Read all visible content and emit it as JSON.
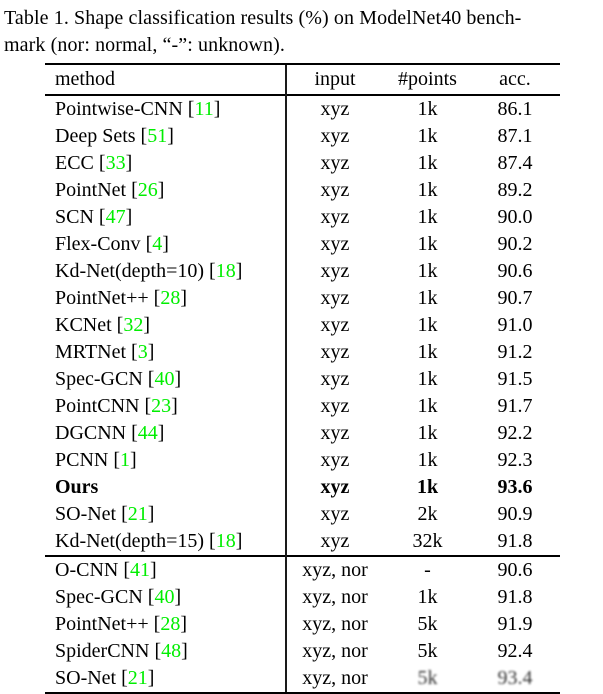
{
  "caption": {
    "line1": "Table 1. Shape classification results (%) on ModelNet40 bench-",
    "line2": "mark (nor: normal, “-”: unknown)."
  },
  "citation_format": {
    "open": "[",
    "close": "]"
  },
  "colors": {
    "citation_green": "#00ee00",
    "text": "#000000",
    "background": "#ffffff"
  },
  "table": {
    "headers": [
      "method",
      "input",
      "#points",
      "acc."
    ],
    "groups": [
      {
        "rows": [
          {
            "method": "Pointwise-CNN",
            "cite": "11",
            "input": "xyz",
            "points": "1k",
            "acc": "86.1"
          },
          {
            "method": "Deep Sets",
            "cite": "51",
            "input": "xyz",
            "points": "1k",
            "acc": "87.1"
          },
          {
            "method": "ECC",
            "cite": "33",
            "input": "xyz",
            "points": "1k",
            "acc": "87.4"
          },
          {
            "method": "PointNet",
            "cite": "26",
            "input": "xyz",
            "points": "1k",
            "acc": "89.2"
          },
          {
            "method": "SCN",
            "cite": "47",
            "input": "xyz",
            "points": "1k",
            "acc": "90.0"
          },
          {
            "method": "Flex-Conv",
            "cite": "4",
            "input": "xyz",
            "points": "1k",
            "acc": "90.2"
          },
          {
            "method": "Kd-Net(depth=10)",
            "cite": "18",
            "input": "xyz",
            "points": "1k",
            "acc": "90.6"
          },
          {
            "method": "PointNet++",
            "cite": "28",
            "input": "xyz",
            "points": "1k",
            "acc": "90.7"
          },
          {
            "method": "KCNet",
            "cite": "32",
            "input": "xyz",
            "points": "1k",
            "acc": "91.0"
          },
          {
            "method": "MRTNet",
            "cite": "3",
            "input": "xyz",
            "points": "1k",
            "acc": "91.2"
          },
          {
            "method": "Spec-GCN",
            "cite": "40",
            "input": "xyz",
            "points": "1k",
            "acc": "91.5"
          },
          {
            "method": "PointCNN",
            "cite": "23",
            "input": "xyz",
            "points": "1k",
            "acc": "91.7"
          },
          {
            "method": "DGCNN",
            "cite": "44",
            "input": "xyz",
            "points": "1k",
            "acc": "92.2"
          },
          {
            "method": "PCNN",
            "cite": "1",
            "input": "xyz",
            "points": "1k",
            "acc": "92.3"
          },
          {
            "method": "Ours",
            "bold": true,
            "input": "xyz",
            "points": "1k",
            "acc": "93.6"
          },
          {
            "method": "SO-Net",
            "cite": "21",
            "input": "xyz",
            "points": "2k",
            "acc": "90.9"
          },
          {
            "method": "Kd-Net(depth=15)",
            "cite": "18",
            "input": "xyz",
            "points": "32k",
            "acc": "91.8"
          }
        ]
      },
      {
        "rows": [
          {
            "method": "O-CNN",
            "cite": "41",
            "input": "xyz, nor",
            "points": "-",
            "acc": "90.6"
          },
          {
            "method": "Spec-GCN",
            "cite": "40",
            "input": "xyz, nor",
            "points": "1k",
            "acc": "91.8"
          },
          {
            "method": "PointNet++",
            "cite": "28",
            "input": "xyz, nor",
            "points": "5k",
            "acc": "91.9"
          },
          {
            "method": "SpiderCNN",
            "cite": "48",
            "input": "xyz, nor",
            "points": "5k",
            "acc": "92.4"
          },
          {
            "method": "SO-Net",
            "cite": "21",
            "input": "xyz, nor",
            "points": "5k",
            "acc": "93.4",
            "blurred": true
          }
        ]
      }
    ]
  }
}
